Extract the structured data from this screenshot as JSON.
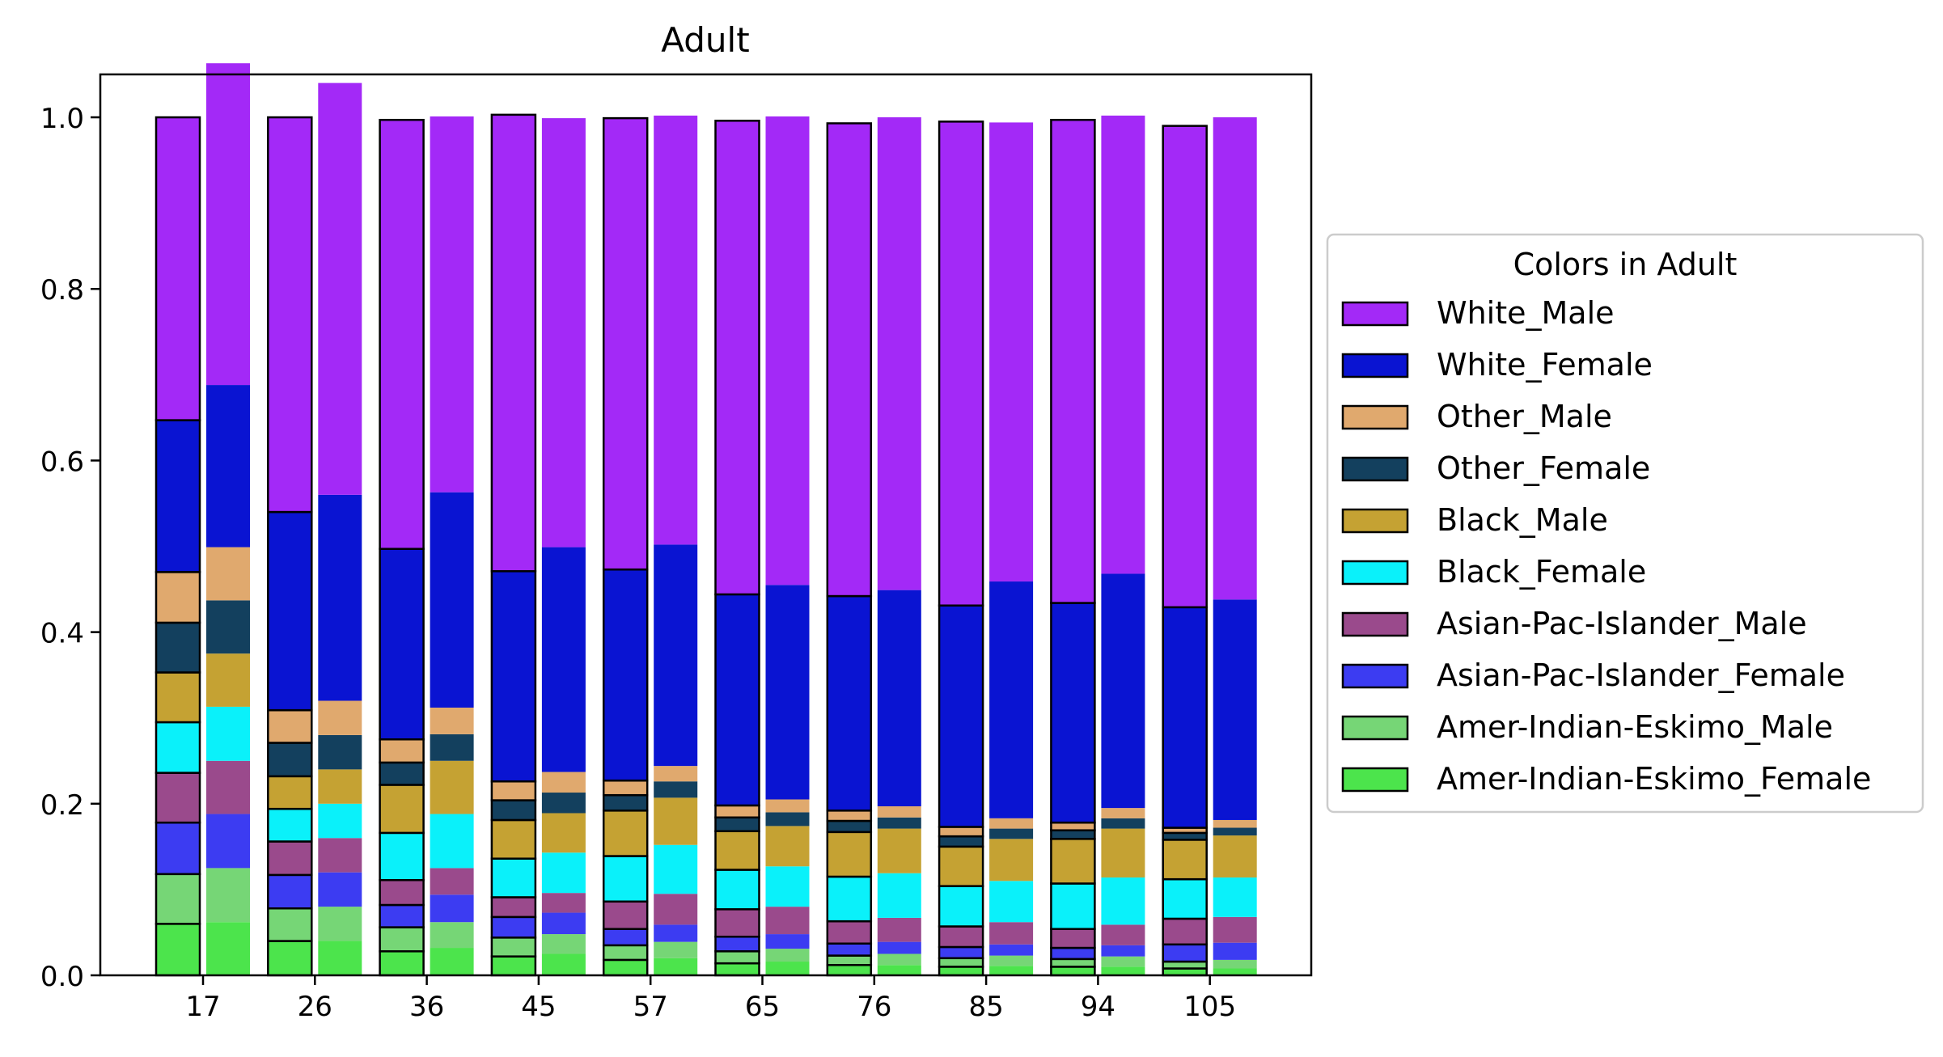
{
  "chart_data": {
    "type": "bar",
    "title": "Adult",
    "xlabel": "",
    "ylabel": "",
    "ylim": [
      0,
      1.05
    ],
    "yticks": [
      "0.0",
      "0.2",
      "0.4",
      "0.6",
      "0.8",
      "1.0"
    ],
    "categories": [
      "17",
      "26",
      "36",
      "45",
      "57",
      "65",
      "76",
      "85",
      "94",
      "105"
    ],
    "stacked": true,
    "bars_per_group": [
      "outlined",
      "plain"
    ],
    "legend": {
      "title": "Colors in Adult",
      "placement": "center-right, outside plot"
    },
    "series": [
      {
        "name": "Amer-Indian-Eskimo_Female",
        "color": "#4ce44c",
        "outlined": [
          0.06,
          0.04,
          0.028,
          0.022,
          0.018,
          0.014,
          0.012,
          0.01,
          0.01,
          0.008
        ],
        "plain": [
          0.062,
          0.04,
          0.032,
          0.025,
          0.02,
          0.016,
          0.012,
          0.011,
          0.01,
          0.008
        ]
      },
      {
        "name": "Amer-Indian-Eskimo_Male",
        "color": "#76d676",
        "outlined": [
          0.058,
          0.038,
          0.028,
          0.022,
          0.017,
          0.014,
          0.011,
          0.01,
          0.009,
          0.008
        ],
        "plain": [
          0.063,
          0.04,
          0.03,
          0.023,
          0.019,
          0.015,
          0.013,
          0.012,
          0.012,
          0.01
        ]
      },
      {
        "name": "Asian-Pac-Islander_Female",
        "color": "#3c3cf2",
        "outlined": [
          0.06,
          0.039,
          0.026,
          0.024,
          0.019,
          0.017,
          0.014,
          0.013,
          0.013,
          0.02
        ],
        "plain": [
          0.063,
          0.04,
          0.032,
          0.025,
          0.02,
          0.017,
          0.014,
          0.013,
          0.013,
          0.02
        ]
      },
      {
        "name": "Asian-Pac-Islander_Male",
        "color": "#9a4a8c",
        "outlined": [
          0.058,
          0.039,
          0.029,
          0.023,
          0.032,
          0.032,
          0.026,
          0.024,
          0.022,
          0.03
        ],
        "plain": [
          0.062,
          0.04,
          0.031,
          0.023,
          0.036,
          0.032,
          0.028,
          0.026,
          0.024,
          0.03
        ]
      },
      {
        "name": "Black_Female",
        "color": "#0af1fa",
        "outlined": [
          0.059,
          0.038,
          0.055,
          0.045,
          0.053,
          0.046,
          0.052,
          0.047,
          0.053,
          0.046
        ],
        "plain": [
          0.063,
          0.04,
          0.063,
          0.047,
          0.057,
          0.047,
          0.052,
          0.048,
          0.055,
          0.046
        ]
      },
      {
        "name": "Black_Male",
        "color": "#c5a233",
        "outlined": [
          0.058,
          0.038,
          0.056,
          0.045,
          0.053,
          0.045,
          0.052,
          0.046,
          0.052,
          0.046
        ],
        "plain": [
          0.062,
          0.04,
          0.062,
          0.046,
          0.055,
          0.047,
          0.052,
          0.049,
          0.057,
          0.049
        ]
      },
      {
        "name": "Other_Female",
        "color": "#13405e",
        "outlined": [
          0.058,
          0.039,
          0.026,
          0.023,
          0.018,
          0.016,
          0.013,
          0.012,
          0.01,
          0.008
        ],
        "plain": [
          0.062,
          0.04,
          0.031,
          0.024,
          0.019,
          0.016,
          0.013,
          0.012,
          0.012,
          0.009
        ]
      },
      {
        "name": "Other_Male",
        "color": "#e0a96e",
        "outlined": [
          0.059,
          0.038,
          0.027,
          0.022,
          0.017,
          0.014,
          0.012,
          0.011,
          0.009,
          0.006
        ],
        "plain": [
          0.062,
          0.04,
          0.031,
          0.024,
          0.018,
          0.015,
          0.013,
          0.012,
          0.012,
          0.009
        ]
      },
      {
        "name": "White_Female",
        "color": "#0a14d2",
        "outlined": [
          0.177,
          0.231,
          0.222,
          0.245,
          0.246,
          0.246,
          0.25,
          0.258,
          0.256,
          0.257
        ],
        "plain": [
          0.189,
          0.24,
          0.251,
          0.262,
          0.258,
          0.25,
          0.252,
          0.276,
          0.273,
          0.257
        ]
      },
      {
        "name": "White_Male",
        "color": "#a329f7",
        "outlined": [
          0.353,
          0.46,
          0.5,
          0.532,
          0.526,
          0.552,
          0.551,
          0.564,
          0.563,
          0.561
        ],
        "plain": [
          0.375,
          0.48,
          0.438,
          0.5,
          0.5,
          0.546,
          0.551,
          0.535,
          0.534,
          0.562
        ]
      }
    ]
  }
}
